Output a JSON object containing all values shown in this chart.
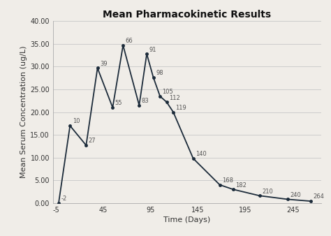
{
  "title": "Mean Pharmacokinetic Results",
  "xlabel": "Time (Days)",
  "ylabel": "Mean Serum Concentration (ug/L)",
  "points": [
    {
      "day": -2,
      "value": 0.0,
      "label": "-2"
    },
    {
      "day": 10,
      "value": 17.0,
      "label": "10"
    },
    {
      "day": 27,
      "value": 12.7,
      "label": "27"
    },
    {
      "day": 39,
      "value": 29.7,
      "label": "39"
    },
    {
      "day": 55,
      "value": 21.0,
      "label": "55"
    },
    {
      "day": 66,
      "value": 34.7,
      "label": "66"
    },
    {
      "day": 83,
      "value": 21.5,
      "label": "83"
    },
    {
      "day": 91,
      "value": 32.8,
      "label": "91"
    },
    {
      "day": 98,
      "value": 27.6,
      "label": "98"
    },
    {
      "day": 105,
      "value": 23.5,
      "label": "105"
    },
    {
      "day": 112,
      "value": 22.2,
      "label": "112"
    },
    {
      "day": 119,
      "value": 20.0,
      "label": "119"
    },
    {
      "day": 140,
      "value": 9.8,
      "label": "140"
    },
    {
      "day": 168,
      "value": 4.0,
      "label": "168"
    },
    {
      "day": 182,
      "value": 3.0,
      "label": "182"
    },
    {
      "day": 210,
      "value": 1.6,
      "label": "210"
    },
    {
      "day": 240,
      "value": 0.8,
      "label": "240"
    },
    {
      "day": 264,
      "value": 0.4,
      "label": "264"
    }
  ],
  "xlim": [
    -8,
    275
  ],
  "ylim": [
    0.0,
    40.0
  ],
  "xticks": [
    -5,
    45,
    95,
    145,
    195,
    245
  ],
  "xtick_labels": [
    "-5",
    "45",
    "95",
    "145",
    "195",
    "245"
  ],
  "yticks": [
    0.0,
    5.0,
    10.0,
    15.0,
    20.0,
    25.0,
    30.0,
    35.0,
    40.0
  ],
  "line_color": "#1c2b3a",
  "marker_color": "#1c2b3a",
  "bg_color": "#f0ede8",
  "plot_bg_color": "#f0ede8",
  "grid_color": "#cccccc",
  "title_fontsize": 10,
  "label_fontsize": 8,
  "tick_fontsize": 7,
  "annotation_fontsize": 6,
  "annotation_color": "#555555"
}
